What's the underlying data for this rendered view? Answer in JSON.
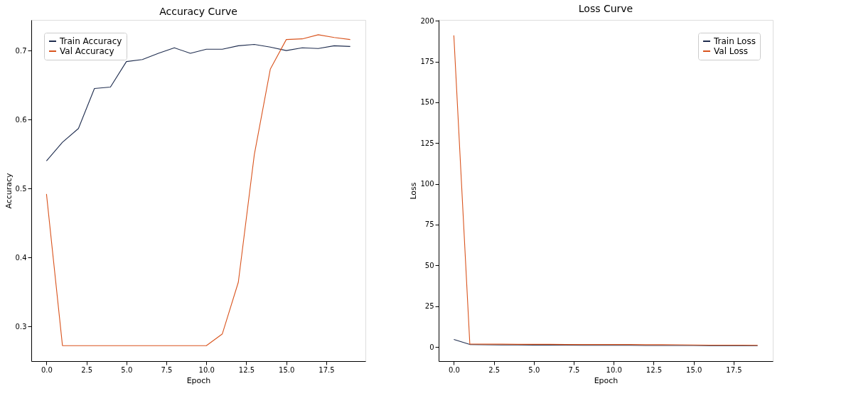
{
  "chart_data": [
    {
      "type": "line",
      "title": "Accuracy Curve",
      "xlabel": "Epoch",
      "ylabel": "Accuracy",
      "x": [
        0,
        1,
        2,
        3,
        4,
        5,
        6,
        7,
        8,
        9,
        10,
        11,
        12,
        13,
        14,
        15,
        16,
        17,
        18,
        19
      ],
      "xlim": [
        -0.95,
        19.95
      ],
      "xticks": [
        {
          "value": 0,
          "label": "0.0"
        },
        {
          "value": 2.5,
          "label": "2.5"
        },
        {
          "value": 5,
          "label": "5.0"
        },
        {
          "value": 7.5,
          "label": "7.5"
        },
        {
          "value": 10,
          "label": "10.0"
        },
        {
          "value": 12.5,
          "label": "12.5"
        },
        {
          "value": 15,
          "label": "15.0"
        },
        {
          "value": 17.5,
          "label": "17.5"
        }
      ],
      "ylim": [
        0.2495,
        0.7445
      ],
      "yticks": [
        0.3,
        0.4,
        0.5,
        0.6,
        0.7
      ],
      "series": [
        {
          "name": "Train Accuracy",
          "color": "#1f2d4f",
          "values": [
            0.54,
            0.567,
            0.587,
            0.645,
            0.647,
            0.684,
            0.687,
            0.696,
            0.704,
            0.696,
            0.702,
            0.702,
            0.707,
            0.709,
            0.705,
            0.7,
            0.704,
            0.703,
            0.707,
            0.706
          ]
        },
        {
          "name": "Val Accuracy",
          "color": "#d9541e",
          "values": [
            0.492,
            0.272,
            0.272,
            0.272,
            0.272,
            0.272,
            0.272,
            0.272,
            0.272,
            0.272,
            0.272,
            0.289,
            0.364,
            0.549,
            0.673,
            0.716,
            0.717,
            0.723,
            0.719,
            0.716
          ]
        }
      ],
      "legend": "top left",
      "grid": false,
      "marker": "none",
      "line_style": "solid"
    },
    {
      "type": "line",
      "title": "Loss Curve",
      "xlabel": "Epoch",
      "ylabel": "Loss",
      "x": [
        0,
        1,
        2,
        3,
        4,
        5,
        6,
        7,
        8,
        9,
        10,
        11,
        12,
        13,
        14,
        15,
        16,
        17,
        18,
        19
      ],
      "xlim": [
        -0.95,
        19.95
      ],
      "xticks": [
        {
          "value": 0,
          "label": "0.0"
        },
        {
          "value": 2.5,
          "label": "2.5"
        },
        {
          "value": 5,
          "label": "5.0"
        },
        {
          "value": 7.5,
          "label": "7.5"
        },
        {
          "value": 10,
          "label": "10.0"
        },
        {
          "value": 12.5,
          "label": "12.5"
        },
        {
          "value": 15,
          "label": "15.0"
        },
        {
          "value": 17.5,
          "label": "17.5"
        }
      ],
      "ylim": [
        -8.7,
        200.5
      ],
      "yticks": [
        0,
        25,
        50,
        75,
        100,
        125,
        150,
        175,
        200
      ],
      "series": [
        {
          "name": "Train Loss",
          "color": "#1f2d4f",
          "values": [
            4.6,
            1.5,
            1.3,
            1.2,
            1.2,
            1.1,
            1.1,
            1.1,
            1.0,
            1.0,
            1.0,
            1.0,
            0.9,
            0.9,
            0.9,
            0.9,
            0.8,
            0.8,
            0.8,
            0.8
          ]
        },
        {
          "name": "Val Loss",
          "color": "#d9541e",
          "values": [
            191,
            1.8,
            1.7,
            1.7,
            1.6,
            1.6,
            1.6,
            1.5,
            1.5,
            1.5,
            1.5,
            1.5,
            1.4,
            1.4,
            1.3,
            1.2,
            1.1,
            1.1,
            1.1,
            1.0
          ]
        }
      ],
      "legend": "top right",
      "grid": false,
      "marker": "none",
      "line_style": "solid"
    }
  ]
}
